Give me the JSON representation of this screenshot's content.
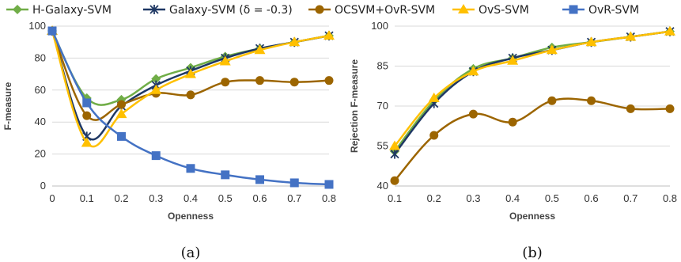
{
  "legend": [
    {
      "name": "H-Galaxy-SVM",
      "color": "#70ad47",
      "marker": "diamond"
    },
    {
      "name": "Galaxy-SVM  (δ = -0.3)",
      "color": "#1f3864",
      "marker": "star"
    },
    {
      "name": "OCSVM+OvR-SVM",
      "color": "#9c6500",
      "marker": "circle"
    },
    {
      "name": "OvS-SVM",
      "color": "#ffc000",
      "marker": "triangle"
    },
    {
      "name": "OvR-SVM",
      "color": "#4472c4",
      "marker": "square"
    }
  ],
  "chart_data": [
    {
      "type": "line",
      "caption": "(a)",
      "xlabel": "Openness",
      "ylabel": "F-measure",
      "x": [
        0,
        0.1,
        0.2,
        0.3,
        0.4,
        0.5,
        0.6,
        0.7,
        0.8
      ],
      "xticks": [
        "0",
        "0.1",
        "0.2",
        "0.3",
        "0.4",
        "0.5",
        "0.6",
        "0.7",
        "0.8"
      ],
      "ylim": [
        0,
        100
      ],
      "yticks": [
        0,
        20,
        40,
        60,
        80,
        100
      ],
      "grid": true,
      "series": [
        {
          "name": "H-Galaxy-SVM",
          "values": [
            97,
            55,
            54,
            67,
            74,
            81,
            86,
            90,
            94
          ]
        },
        {
          "name": "Galaxy-SVM  (δ = -0.3)",
          "values": [
            97,
            31,
            50,
            63,
            72,
            80,
            86,
            90,
            94
          ]
        },
        {
          "name": "OCSVM+OvR-SVM",
          "values": [
            97,
            44,
            51,
            58,
            57,
            65,
            66,
            65,
            66
          ]
        },
        {
          "name": "OvS-SVM",
          "values": [
            97,
            27,
            45,
            60,
            70,
            78,
            85,
            90,
            94
          ]
        },
        {
          "name": "OvR-SVM",
          "values": [
            97,
            52,
            31,
            19,
            11,
            7,
            4,
            2,
            1
          ]
        }
      ]
    },
    {
      "type": "line",
      "caption": "(b)",
      "xlabel": "Openness",
      "ylabel": "Rejection F-measure",
      "x": [
        0.1,
        0.2,
        0.3,
        0.4,
        0.5,
        0.6,
        0.7,
        0.8
      ],
      "xticks": [
        "0.1",
        "0.2",
        "0.3",
        "0.4",
        "0.5",
        "0.6",
        "0.7",
        "0.8"
      ],
      "ylim": [
        40,
        100
      ],
      "yticks": [
        40,
        55,
        70,
        85,
        100
      ],
      "grid": true,
      "series": [
        {
          "name": "H-Galaxy-SVM",
          "values": [
            53,
            72,
            84,
            88,
            92,
            94,
            96,
            98
          ]
        },
        {
          "name": "Galaxy-SVM  (δ = -0.3)",
          "values": [
            52,
            71,
            83,
            88,
            91,
            94,
            96,
            98
          ]
        },
        {
          "name": "OCSVM+OvR-SVM",
          "values": [
            42,
            59,
            67,
            64,
            72,
            72,
            69,
            69
          ]
        },
        {
          "name": "OvS-SVM",
          "values": [
            55,
            73,
            83,
            87,
            91,
            94,
            96,
            98
          ]
        }
      ]
    }
  ]
}
